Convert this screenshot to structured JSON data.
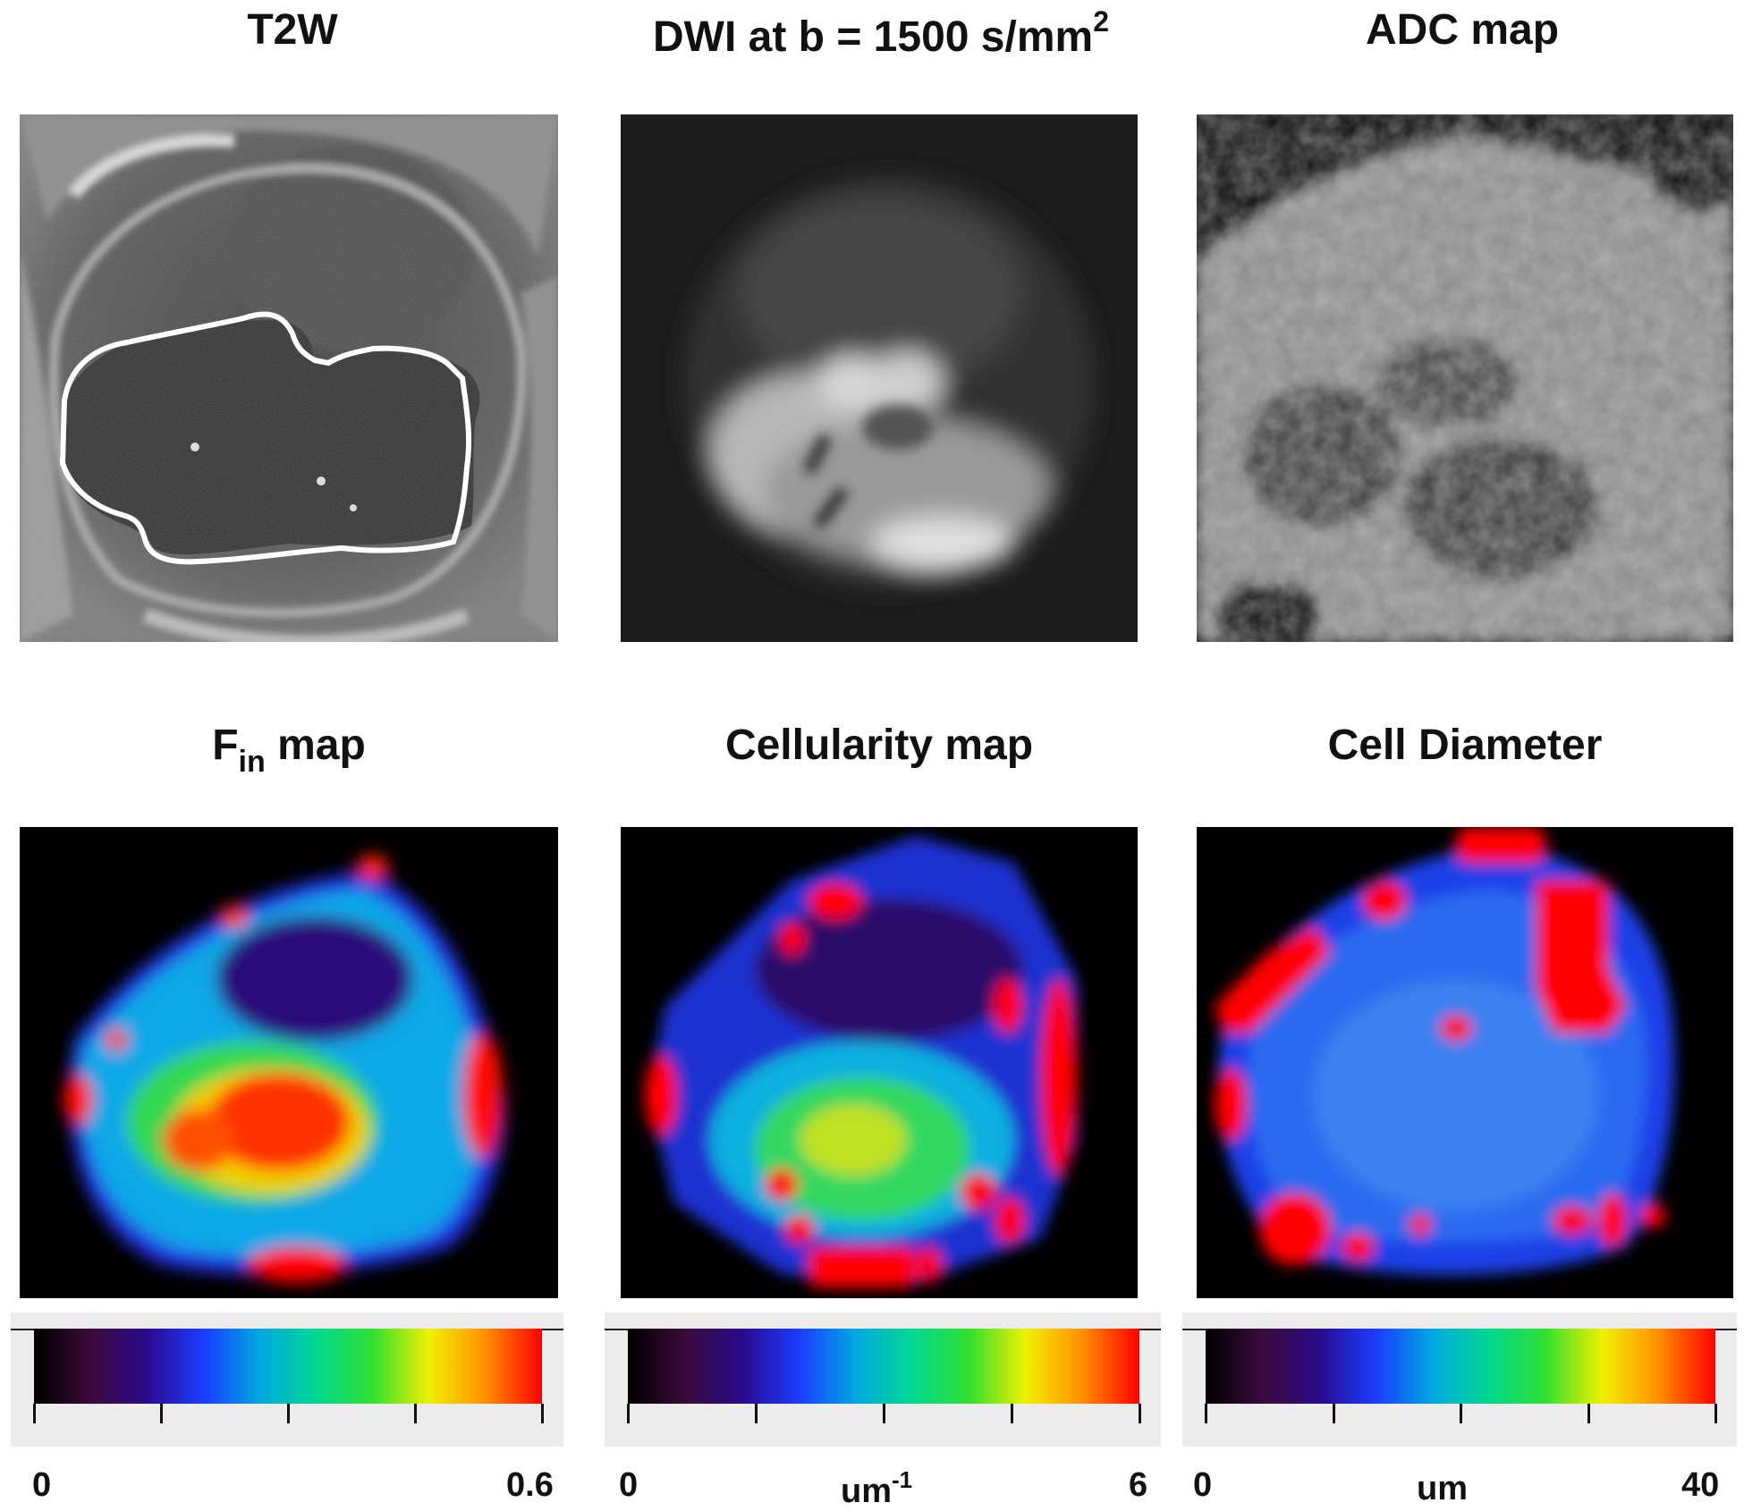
{
  "titles": {
    "t2w": "T2W",
    "dwi_main": "DWI at b = 1500 s/mm",
    "dwi_sup": "2",
    "adc": "ADC map",
    "fin_main": "F",
    "fin_sub": "in",
    "fin_rest": " map",
    "cellularity": "Cellularity map",
    "diameter": "Cell Diameter"
  },
  "colorbars": [
    {
      "min": "0",
      "max": "0.6",
      "unit": "",
      "unit_sup": ""
    },
    {
      "min": "0",
      "max": "6",
      "unit": "um",
      "unit_sup": "-1"
    },
    {
      "min": "0",
      "max": "40",
      "unit": "um",
      "unit_sup": ""
    }
  ],
  "colors": {
    "colormap": [
      "#000000",
      "#3a0a3a",
      "#2b0a8a",
      "#1a3cff",
      "#00a8e0",
      "#00d890",
      "#30e030",
      "#f0f000",
      "#ff9000",
      "#ff0000"
    ],
    "contour": "#ffffff"
  }
}
